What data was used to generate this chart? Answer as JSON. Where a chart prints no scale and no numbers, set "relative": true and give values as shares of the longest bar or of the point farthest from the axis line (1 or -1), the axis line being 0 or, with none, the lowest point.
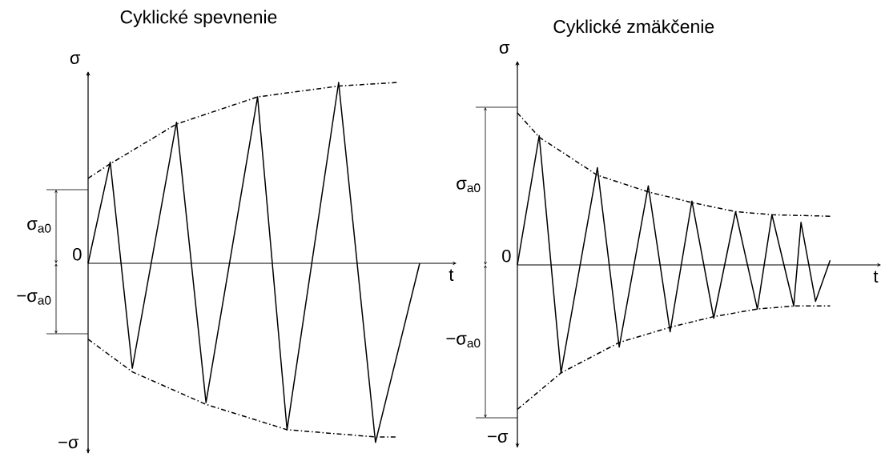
{
  "chart_data": [
    {
      "type": "line",
      "title": "Cyklické spevnenie",
      "xlabel": "t",
      "ylabel": "σ",
      "relative": true,
      "categories": [
        null,
        null,
        null,
        null,
        null,
        null,
        null,
        null,
        null,
        null,
        null,
        null,
        null,
        null,
        null,
        null,
        null,
        null,
        null,
        null,
        null,
        null,
        null,
        null,
        null,
        null,
        null,
        null,
        null,
        null,
        null,
        null,
        null,
        null,
        null,
        null,
        null,
        null,
        null,
        null,
        null,
        null,
        null,
        null,
        null,
        null
      ],
      "series": [
        {
          "color": "#000000",
          "line_style": "solid",
          "values": [
            0,
            null,
            null,
            0.56,
            null,
            null,
            -0.58,
            null,
            null,
            null,
            null,
            null,
            0.78,
            null,
            null,
            null,
            -0.77,
            null,
            null,
            null,
            null,
            null,
            null,
            0.92,
            null,
            null,
            null,
            -0.92,
            null,
            null,
            null,
            null,
            null,
            null,
            1.0,
            null,
            null,
            null,
            null,
            -0.99,
            null,
            null,
            null,
            null,
            null,
            0
          ]
        },
        {
          "color": "#000000",
          "line_style": "dashed",
          "values": [
            0.47,
            null,
            null,
            0.55,
            null,
            null,
            null,
            null,
            null,
            null,
            null,
            null,
            0.77,
            null,
            null,
            null,
            null,
            null,
            null,
            null,
            null,
            null,
            null,
            0.92,
            null,
            null,
            null,
            null,
            null,
            null,
            null,
            null,
            null,
            null,
            0.98,
            null,
            null,
            null,
            null,
            null,
            null,
            null,
            1.0,
            null,
            null,
            null
          ]
        },
        {
          "color": "#000000",
          "line_style": "dashed",
          "values": [
            -0.42,
            null,
            null,
            null,
            null,
            null,
            -0.6,
            null,
            null,
            null,
            null,
            null,
            null,
            null,
            null,
            null,
            -0.78,
            null,
            null,
            null,
            null,
            null,
            null,
            null,
            null,
            null,
            null,
            -0.92,
            null,
            null,
            null,
            null,
            null,
            null,
            null,
            null,
            null,
            null,
            null,
            -0.96,
            null,
            null,
            -0.96,
            null,
            null,
            null
          ]
        }
      ],
      "annotations": [
        "0",
        "−σ",
        "σ$_{a0}$",
        "−σ$_{a0}$"
      ]
    },
    {
      "type": "line",
      "title": "Cyklické zmäkčenie",
      "xlabel": "t",
      "ylabel": "σ",
      "relative": true,
      "categories": [
        null,
        null,
        null,
        null,
        null,
        null,
        null,
        null,
        null,
        null,
        null,
        null,
        null,
        null,
        null,
        null,
        null,
        null,
        null,
        null,
        null,
        null,
        null,
        null,
        null,
        null,
        null,
        null,
        null,
        null,
        null,
        null,
        null,
        null,
        null,
        null,
        null,
        null,
        null,
        null,
        null,
        null,
        null,
        null
      ],
      "series": [
        {
          "color": "#000000",
          "line_style": "solid",
          "values": [
            0,
            null,
            null,
            0.85,
            null,
            null,
            -0.71,
            null,
            null,
            null,
            null,
            0.64,
            null,
            null,
            -0.54,
            null,
            null,
            null,
            0.52,
            null,
            null,
            -0.44,
            null,
            null,
            0.42,
            null,
            null,
            -0.35,
            null,
            null,
            0.35,
            null,
            null,
            -0.29,
            null,
            0.33,
            null,
            null,
            -0.27,
            0.28,
            null,
            -0.24,
            null,
            0.03
          ]
        },
        {
          "color": "#000000",
          "line_style": "dashed",
          "values": [
            1.0,
            null,
            null,
            0.84,
            null,
            null,
            null,
            null,
            null,
            null,
            null,
            0.59,
            null,
            null,
            null,
            null,
            null,
            null,
            0.48,
            null,
            null,
            null,
            null,
            null,
            0.41,
            null,
            null,
            null,
            null,
            null,
            0.35,
            null,
            null,
            null,
            null,
            0.33,
            null,
            null,
            null,
            null,
            null,
            null,
            null,
            0.32
          ]
        },
        {
          "color": "#000000",
          "line_style": "dashed",
          "values": [
            -0.95,
            null,
            null,
            null,
            null,
            null,
            -0.71,
            null,
            null,
            null,
            null,
            null,
            null,
            null,
            -0.51,
            null,
            null,
            null,
            null,
            null,
            null,
            -0.41,
            null,
            null,
            null,
            null,
            null,
            -0.34,
            null,
            null,
            null,
            null,
            null,
            -0.29,
            null,
            null,
            null,
            null,
            -0.27,
            null,
            null,
            null,
            null,
            -0.27
          ]
        }
      ],
      "annotations": [
        "0",
        "−σ",
        "σ$_{a0}$",
        "−σ$_{a0}$"
      ]
    }
  ]
}
